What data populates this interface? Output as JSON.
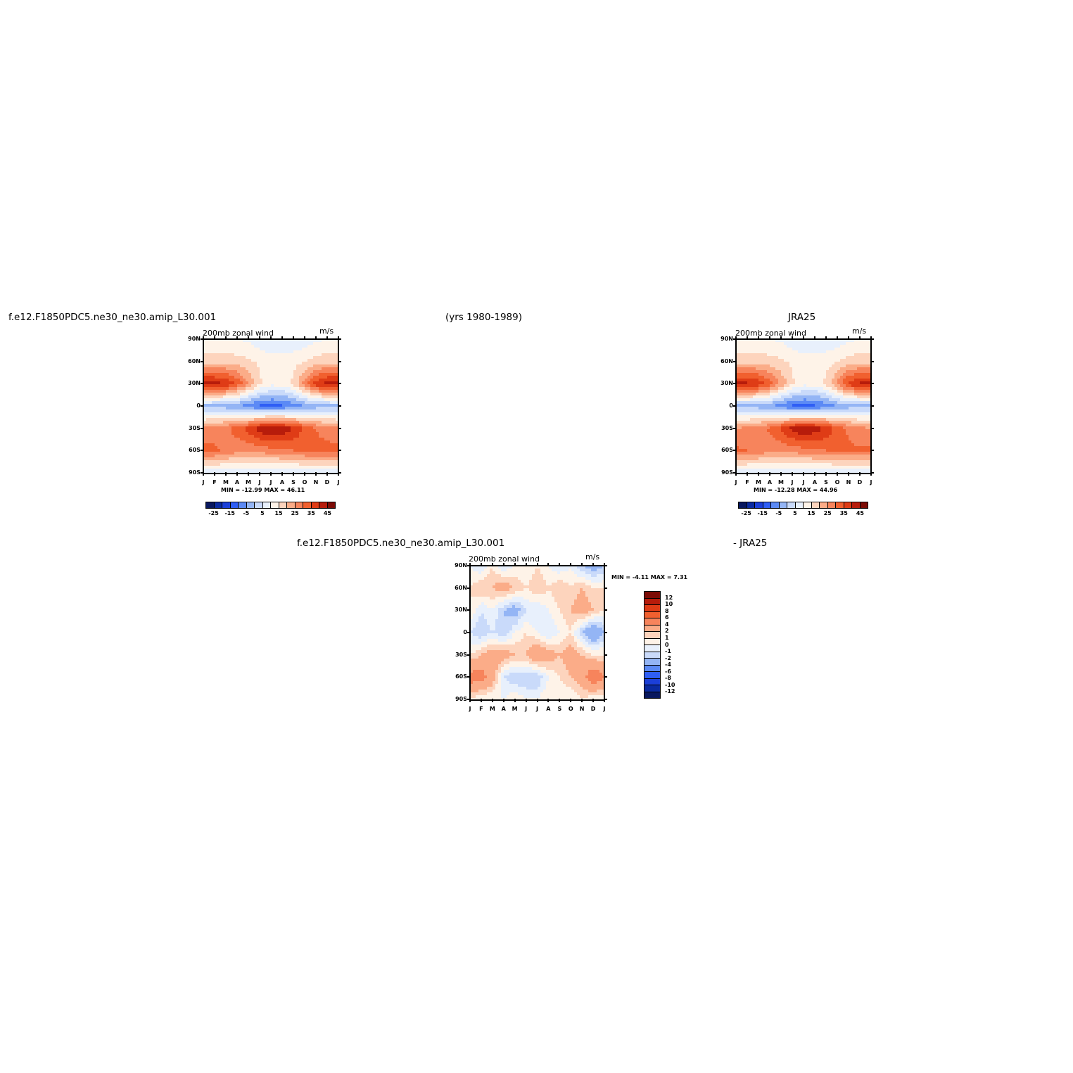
{
  "headers": {
    "left": "f.e12.F1850PDC5.ne30_ne30.amip_L30.001",
    "center": "(yrs 1980-1989)",
    "right": "JRA25",
    "diff_left": "f.e12.F1850PDC5.ne30_ne30.amip_L30.001",
    "diff_right": "- JRA25"
  },
  "palette": {
    "full": [
      "#08175e",
      "#0a2aa0",
      "#1b3fd8",
      "#2f5ef5",
      "#5c8af5",
      "#94b5f5",
      "#c9dafa",
      "#e8f0fc",
      "#fef3e8",
      "#fdd4bd",
      "#fbac88",
      "#f7845c",
      "#f1602f",
      "#df3c16",
      "#b71c0b",
      "#7c0b05"
    ],
    "diff": [
      "#7c0b05",
      "#b71c0b",
      "#df3c16",
      "#f1602f",
      "#f7845c",
      "#fbac88",
      "#fdd4bd",
      "#fef3e8",
      "#e8f0fc",
      "#c9dafa",
      "#94b5f5",
      "#5c8af5",
      "#2f5ef5",
      "#1b3fd8",
      "#0a2aa0",
      "#08175e"
    ]
  },
  "panels": {
    "model": {
      "subtitle": "200mb zonal wind",
      "units": "m/s",
      "minmax": "MIN = -12.99 MAX = 46.11",
      "yticks": [
        "90N",
        "60N",
        "30N",
        "0",
        "30S",
        "60S",
        "90S"
      ],
      "xticks": [
        "J",
        "F",
        "M",
        "A",
        "M",
        "J",
        "J",
        "A",
        "S",
        "O",
        "N",
        "D",
        "J"
      ],
      "cbar_labels": [
        "-25",
        "-15",
        "-5",
        "5",
        "15",
        "25",
        "35",
        "45"
      ]
    },
    "obs": {
      "subtitle": "200mb zonal wind",
      "units": "m/s",
      "minmax": "MIN = -12.28 MAX = 44.96",
      "yticks": [
        "90N",
        "60N",
        "30N",
        "0",
        "30S",
        "60S",
        "90S"
      ],
      "xticks": [
        "J",
        "F",
        "M",
        "A",
        "M",
        "J",
        "J",
        "A",
        "S",
        "O",
        "N",
        "D",
        "J"
      ],
      "cbar_labels": [
        "-25",
        "-15",
        "-5",
        "5",
        "15",
        "25",
        "35",
        "45"
      ]
    },
    "diff": {
      "subtitle": "200mb zonal wind",
      "units": "m/s",
      "minmax": "MIN = -4.11 MAX = 7.31",
      "yticks": [
        "90N",
        "60N",
        "30N",
        "0",
        "30S",
        "60S",
        "90S"
      ],
      "xticks": [
        "J",
        "F",
        "M",
        "A",
        "M",
        "J",
        "J",
        "A",
        "S",
        "O",
        "N",
        "D",
        "J"
      ],
      "cbar_labels": [
        "12",
        "10",
        "8",
        "6",
        "4",
        "2",
        "1",
        "0",
        "-1",
        "-2",
        "-4",
        "-6",
        "-8",
        "-10",
        "-12"
      ]
    }
  },
  "chart_data": [
    {
      "type": "heatmap",
      "title": "200mb zonal wind",
      "units": "m/s",
      "x": [
        "J",
        "F",
        "M",
        "A",
        "M",
        "J",
        "J",
        "A",
        "S",
        "O",
        "N",
        "D",
        "J"
      ],
      "y": [
        "90N",
        "60N",
        "30N",
        "0",
        "30S",
        "60S",
        "90S"
      ],
      "values": [
        [
          10,
          10,
          10,
          10,
          9,
          7,
          6,
          6,
          6,
          7,
          9,
          10,
          10
        ],
        [
          18,
          18,
          18,
          17,
          16,
          14,
          12,
          12,
          13,
          15,
          17,
          18,
          18
        ],
        [
          43,
          42,
          40,
          34,
          25,
          16,
          12,
          12,
          16,
          27,
          38,
          42,
          43
        ],
        [
          -2,
          -2,
          -3,
          -5,
          -8,
          -11,
          -12,
          -11,
          -8,
          -5,
          -3,
          -2,
          -2
        ],
        [
          26,
          27,
          29,
          32,
          37,
          43,
          46,
          44,
          40,
          34,
          30,
          27,
          26
        ],
        [
          32,
          31,
          29,
          27,
          26,
          27,
          28,
          29,
          30,
          31,
          32,
          32,
          32
        ],
        [
          6,
          6,
          6,
          5,
          5,
          5,
          5,
          5,
          5,
          6,
          6,
          6,
          6
        ]
      ],
      "min": -12.99,
      "max": 46.11,
      "colorbar": [
        -25,
        -15,
        -5,
        5,
        15,
        25,
        35,
        45
      ]
    },
    {
      "type": "heatmap",
      "title": "200mb zonal wind",
      "units": "m/s",
      "x": [
        "J",
        "F",
        "M",
        "A",
        "M",
        "J",
        "J",
        "A",
        "S",
        "O",
        "N",
        "D",
        "J"
      ],
      "y": [
        "90N",
        "60N",
        "30N",
        "0",
        "30S",
        "60S",
        "90S"
      ],
      "values": [
        [
          10,
          10,
          10,
          10,
          9,
          7,
          6,
          6,
          6,
          7,
          9,
          10,
          10
        ],
        [
          18,
          18,
          18,
          17,
          16,
          14,
          12,
          12,
          13,
          15,
          17,
          18,
          18
        ],
        [
          42,
          41,
          39,
          33,
          24,
          16,
          12,
          12,
          16,
          26,
          37,
          41,
          42
        ],
        [
          -2,
          -2,
          -3,
          -5,
          -8,
          -11,
          -12,
          -11,
          -8,
          -5,
          -3,
          -2,
          -2
        ],
        [
          25,
          26,
          28,
          31,
          36,
          42,
          45,
          43,
          39,
          33,
          29,
          26,
          25
        ],
        [
          31,
          30,
          28,
          27,
          26,
          27,
          28,
          29,
          30,
          31,
          31,
          31,
          31
        ],
        [
          6,
          6,
          6,
          5,
          5,
          5,
          5,
          5,
          5,
          6,
          6,
          6,
          6
        ]
      ],
      "min": -12.28,
      "max": 44.96,
      "colorbar": [
        -25,
        -15,
        -5,
        5,
        15,
        25,
        35,
        45
      ]
    },
    {
      "type": "heatmap",
      "title": "200mb zonal wind",
      "units": "m/s",
      "x": [
        "J",
        "F",
        "M",
        "A",
        "M",
        "J",
        "J",
        "A",
        "S",
        "O",
        "N",
        "D",
        "J"
      ],
      "y": [
        "90N",
        "60N",
        "30N",
        "0",
        "30S",
        "60S",
        "90S"
      ],
      "values": [
        [
          0,
          -1,
          1,
          -1,
          0,
          0,
          1,
          0,
          -1,
          0,
          -2,
          -3,
          -2
        ],
        [
          1,
          2,
          2,
          3,
          2,
          1,
          2,
          1,
          2,
          1,
          2,
          1,
          1
        ],
        [
          1,
          -1,
          0,
          -2,
          -3,
          -1,
          -1,
          0,
          1,
          2,
          3,
          2,
          1
        ],
        [
          -1,
          -2,
          -1,
          -2,
          0,
          1,
          0,
          -1,
          0,
          1,
          -2,
          -4,
          -2
        ],
        [
          1,
          2,
          3,
          3,
          2,
          2,
          4,
          3,
          2,
          3,
          2,
          1,
          1
        ],
        [
          5,
          5,
          3,
          -1,
          -2,
          -2,
          -2,
          0,
          1,
          2,
          3,
          6,
          4
        ],
        [
          1,
          0,
          0,
          0,
          1,
          0,
          0,
          1,
          0,
          0,
          1,
          0,
          0
        ]
      ],
      "min": -4.11,
      "max": 7.31,
      "colorbar": [
        12,
        10,
        8,
        6,
        4,
        2,
        1,
        0,
        -1,
        -2,
        -4,
        -6,
        -8,
        -10,
        -12
      ]
    }
  ]
}
